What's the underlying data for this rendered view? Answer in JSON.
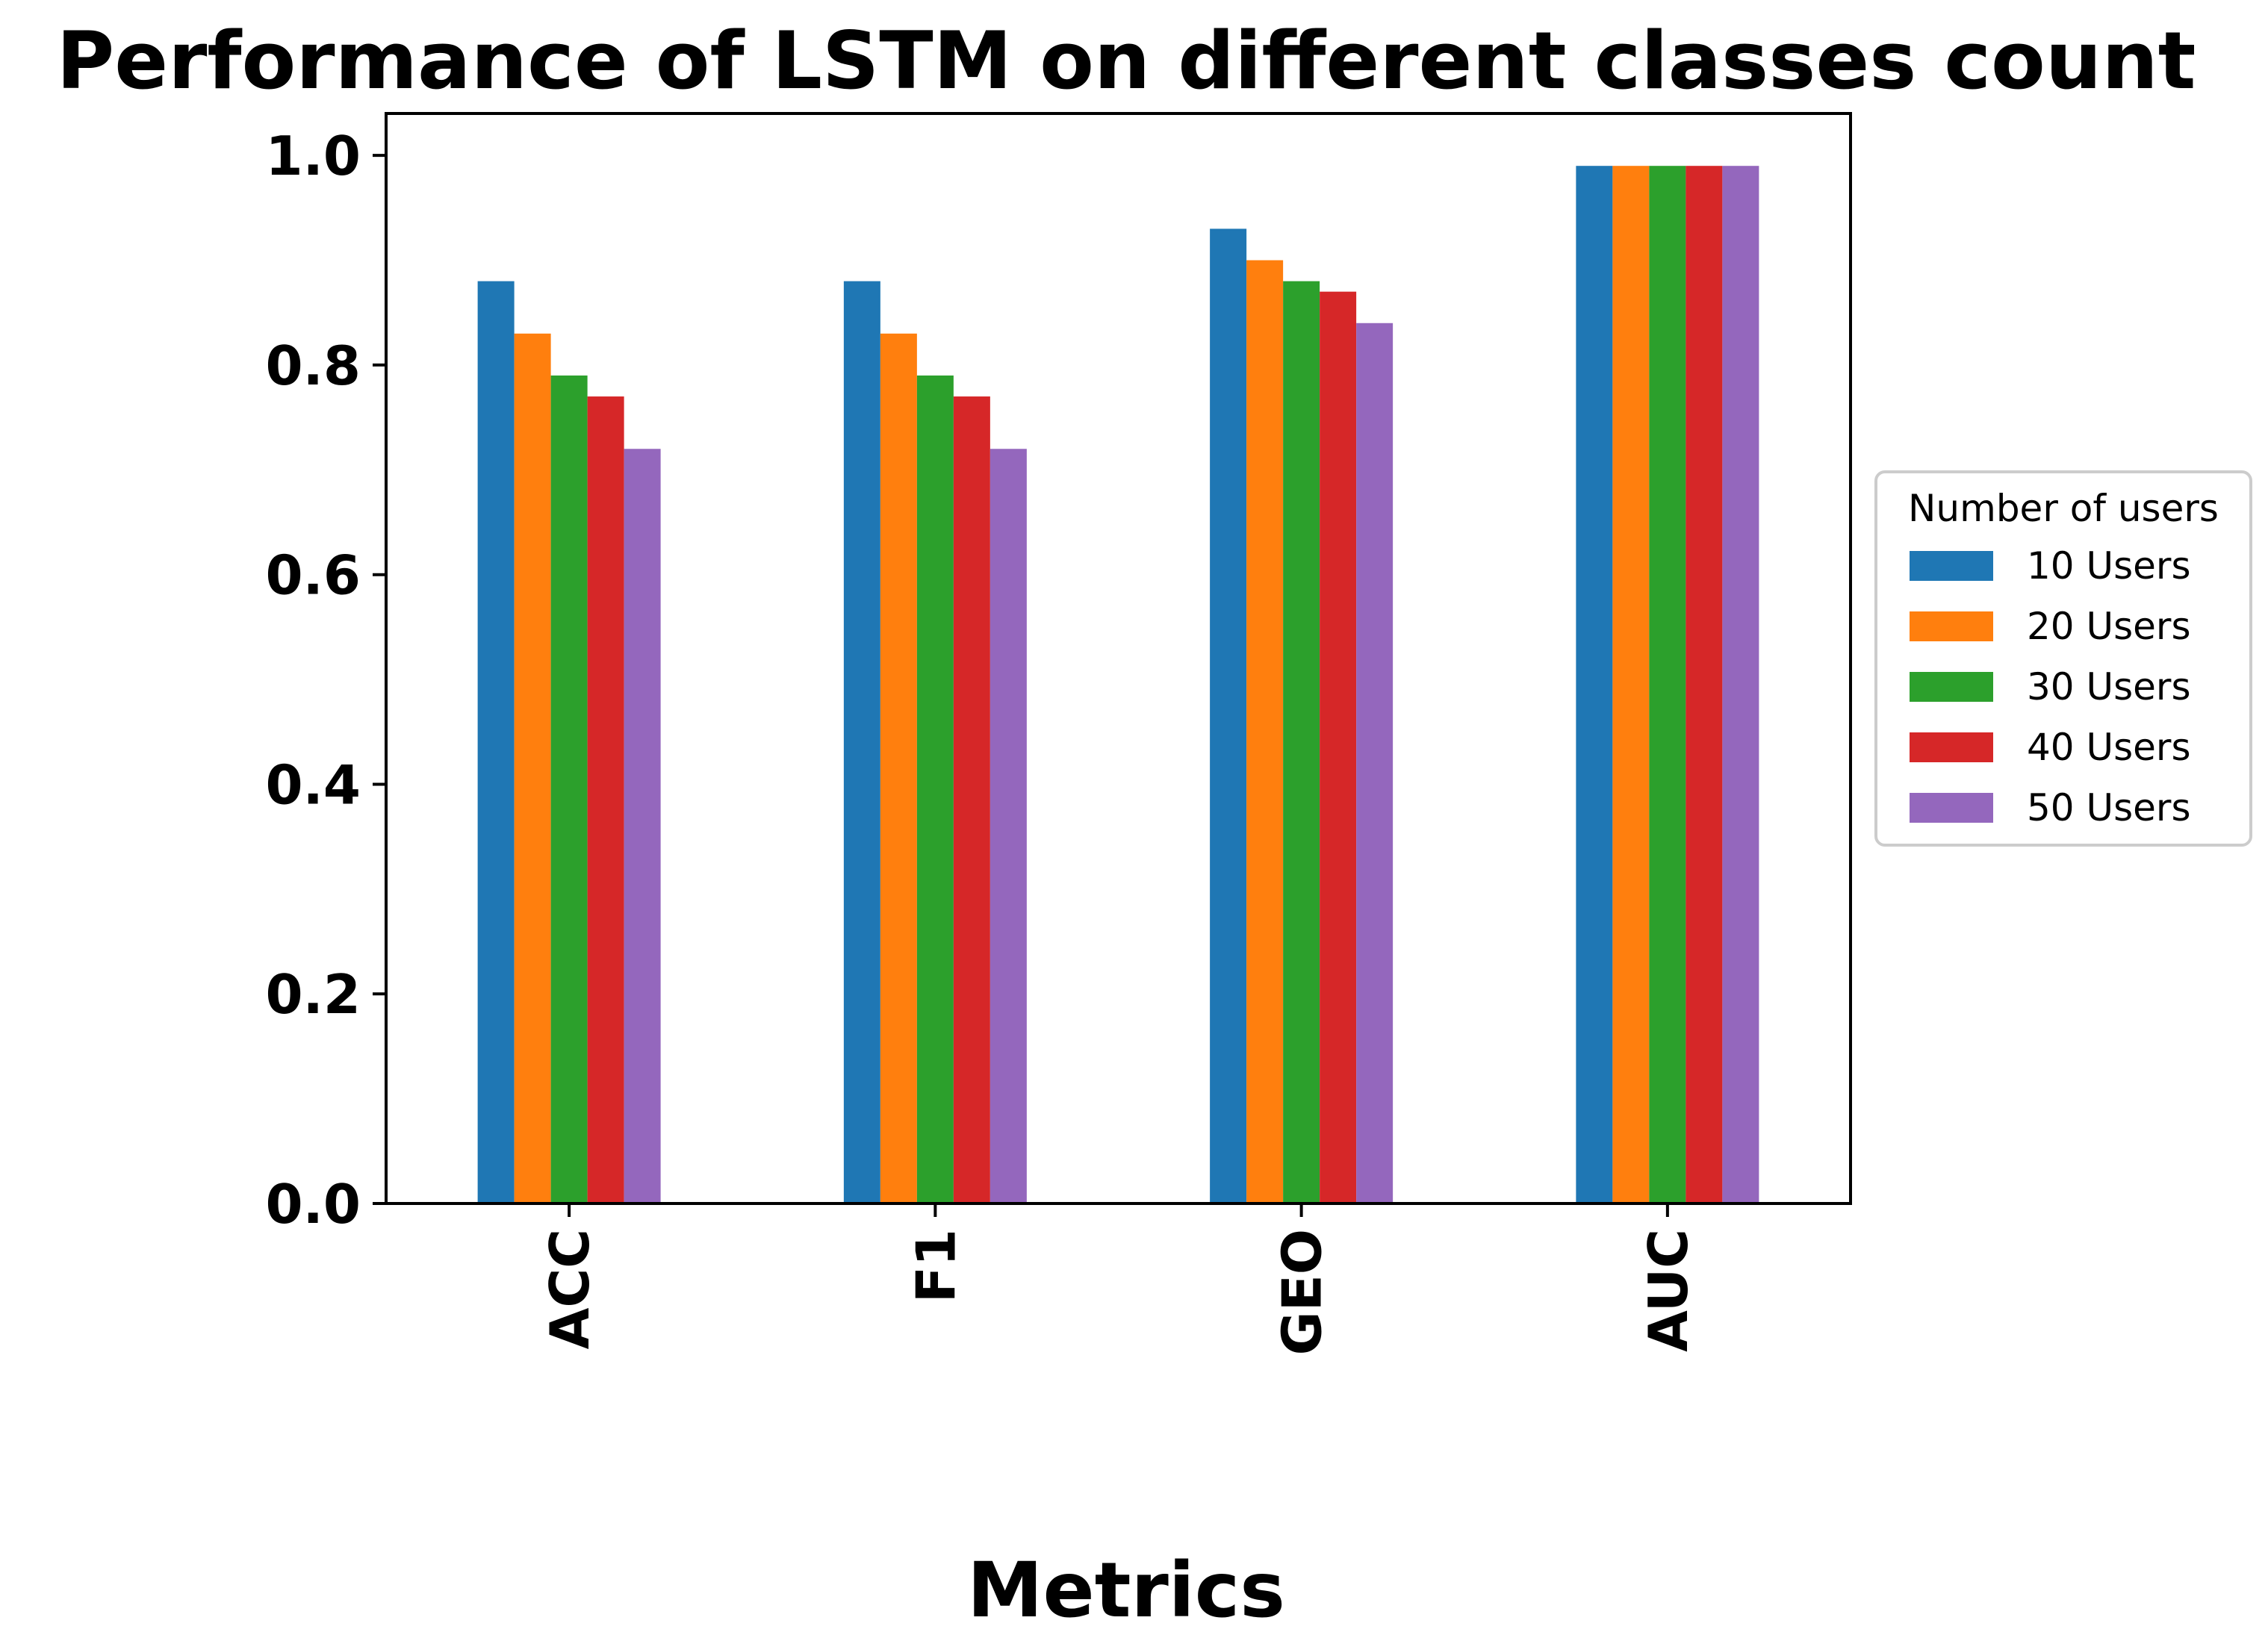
{
  "chart_data": {
    "type": "bar",
    "title": "Performance of LSTM on different classes count",
    "xlabel": "Metrics",
    "ylabel": "",
    "ylim": [
      0,
      1.04
    ],
    "yticks": [
      "0.0",
      "0.2",
      "0.4",
      "0.6",
      "0.8",
      "1.0"
    ],
    "ytick_values": [
      0.0,
      0.2,
      0.4,
      0.6,
      0.8,
      1.0
    ],
    "categories": [
      "ACC",
      "F1",
      "GEO",
      "AUC"
    ],
    "grid": false,
    "legend": {
      "title": "Number of users",
      "placement": "right-outside"
    },
    "series": [
      {
        "name": "10 Users",
        "color": "#1f77b4",
        "values": [
          0.88,
          0.88,
          0.93,
          0.99
        ]
      },
      {
        "name": "20 Users",
        "color": "#ff7f0e",
        "values": [
          0.83,
          0.83,
          0.9,
          0.99
        ]
      },
      {
        "name": "30 Users",
        "color": "#2ca02c",
        "values": [
          0.79,
          0.79,
          0.88,
          0.99
        ]
      },
      {
        "name": "40 Users",
        "color": "#d62728",
        "values": [
          0.77,
          0.77,
          0.87,
          0.99
        ]
      },
      {
        "name": "50 Users",
        "color": "#9467bd",
        "values": [
          0.72,
          0.72,
          0.84,
          0.99
        ]
      }
    ]
  }
}
